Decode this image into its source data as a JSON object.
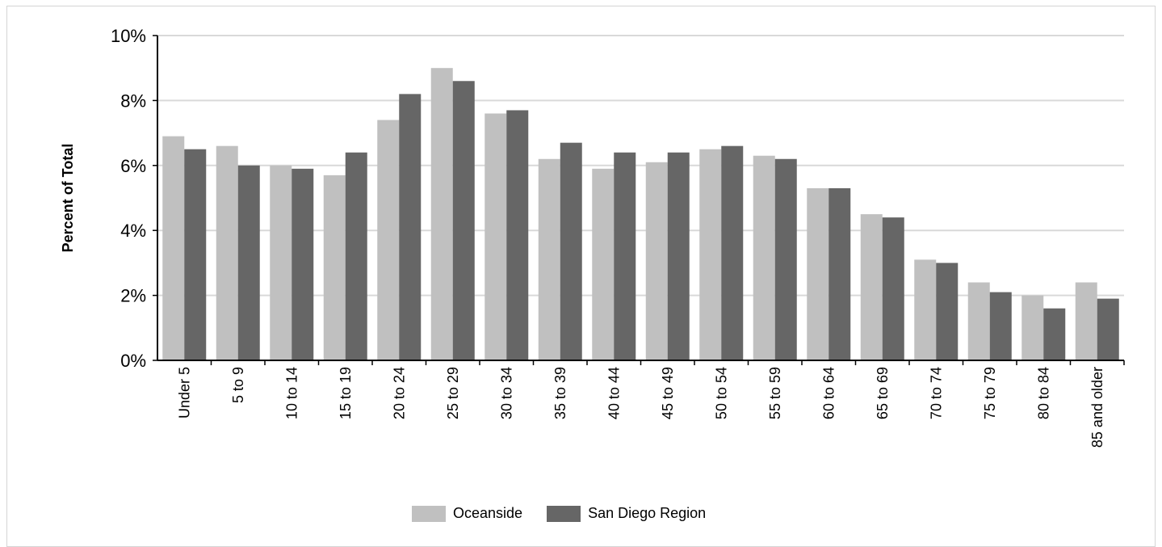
{
  "chart_data": {
    "type": "bar",
    "title": "",
    "xlabel": "",
    "ylabel": "Percent of Total",
    "ylim": [
      0,
      10
    ],
    "yticks": [
      0,
      2,
      4,
      6,
      8,
      10
    ],
    "ytick_labels": [
      "0%",
      "2%",
      "4%",
      "6%",
      "8%",
      "10%"
    ],
    "grid": true,
    "legend_position": "bottom-center",
    "categories": [
      "Under 5",
      "5 to 9",
      "10 to 14",
      "15 to 19",
      "20 to 24",
      "25 to 29",
      "30 to 34",
      "35 to 39",
      "40 to 44",
      "45 to 49",
      "50 to 54",
      "55 to 59",
      "60 to 64",
      "65 to 69",
      "70 to 74",
      "75 to 79",
      "80 to 84",
      "85 and older"
    ],
    "series": [
      {
        "name": "Oceanside",
        "color": "#c0c0c0",
        "values": [
          6.9,
          6.6,
          6.0,
          5.7,
          7.4,
          9.0,
          7.6,
          6.2,
          5.9,
          6.1,
          6.5,
          6.3,
          5.3,
          4.5,
          3.1,
          2.4,
          2.0,
          2.4
        ]
      },
      {
        "name": "San Diego Region",
        "color": "#666666",
        "values": [
          6.5,
          6.0,
          5.9,
          6.4,
          8.2,
          8.6,
          7.7,
          6.7,
          6.4,
          6.4,
          6.6,
          6.2,
          5.3,
          4.4,
          3.0,
          2.1,
          1.6,
          1.9
        ]
      }
    ]
  }
}
